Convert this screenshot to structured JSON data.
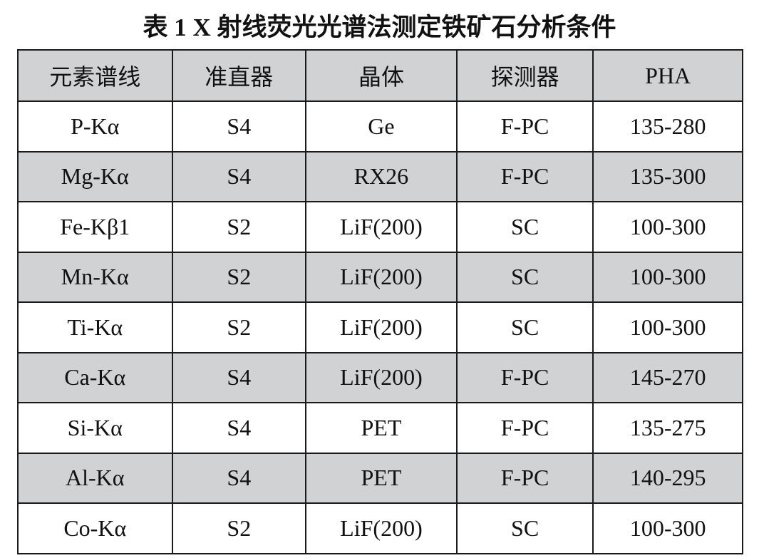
{
  "title": "表 1 X 射线荧光光谱法测定铁矿石分析条件",
  "table": {
    "headers": [
      "元素谱线",
      "准直器",
      "晶体",
      "探测器",
      "PHA"
    ],
    "rows": [
      [
        "P-Kα",
        "S4",
        "Ge",
        "F-PC",
        "135-280"
      ],
      [
        "Mg-Kα",
        "S4",
        "RX26",
        "F-PC",
        "135-300"
      ],
      [
        "Fe-Kβ1",
        "S2",
        "LiF(200)",
        "SC",
        "100-300"
      ],
      [
        "Mn-Kα",
        "S2",
        "LiF(200)",
        "SC",
        "100-300"
      ],
      [
        "Ti-Kα",
        "S2",
        "LiF(200)",
        "SC",
        "100-300"
      ],
      [
        "Ca-Kα",
        "S4",
        "LiF(200)",
        "F-PC",
        "145-270"
      ],
      [
        "Si-Kα",
        "S4",
        "PET",
        "F-PC",
        "135-275"
      ],
      [
        "Al-Kα",
        "S4",
        "PET",
        "F-PC",
        "140-295"
      ],
      [
        "Co-Kα",
        "S2",
        "LiF(200)",
        "SC",
        "100-300"
      ]
    ]
  },
  "colors": {
    "header_bg": "#d1d2d4",
    "alt_row_bg": "#d1d2d4",
    "border": "#1a1a1a"
  }
}
